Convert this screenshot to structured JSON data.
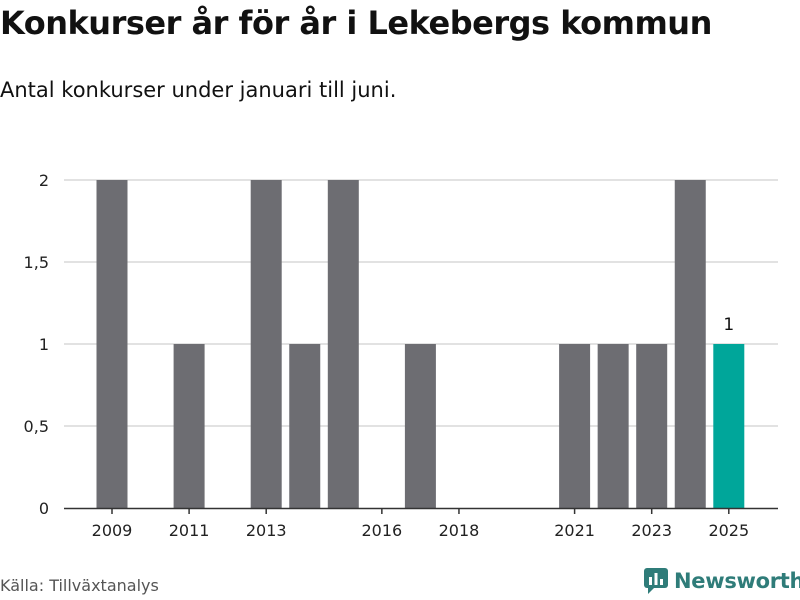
{
  "title": "Konkurser år för år i Lekebergs kommun",
  "subtitle": "Antal konkurser under januari till juni.",
  "source": "Källa: Tillväxtanalys",
  "brand": {
    "name": "Newsworthy",
    "color": "#2f7c79"
  },
  "colors": {
    "bar": "#6d6d72",
    "highlight": "#00a69a",
    "grid": "#d9d9d9"
  },
  "chart_data": {
    "type": "bar",
    "categories": [
      "2009",
      "2010",
      "2011",
      "2012",
      "2013",
      "2014",
      "2015",
      "2016",
      "2017",
      "2018",
      "2019",
      "2020",
      "2021",
      "2022",
      "2023",
      "2024",
      "2025"
    ],
    "values": [
      2,
      0,
      1,
      0,
      2,
      1,
      2,
      0,
      1,
      0,
      0,
      0,
      1,
      1,
      1,
      2,
      1
    ],
    "highlight_category": "2025",
    "x_tick_labels": [
      "2009",
      "2011",
      "2013",
      "2016",
      "2018",
      "2021",
      "2023",
      "2025"
    ],
    "y_ticks": [
      0,
      0.5,
      1,
      1.5,
      2
    ],
    "y_tick_labels": [
      "0",
      "0,5",
      "1",
      "1,5",
      "2"
    ],
    "ylim": [
      0,
      2
    ],
    "data_labels": [
      {
        "category": "2025",
        "text": "1"
      }
    ],
    "grid": true,
    "legend": false,
    "xlabel": "",
    "ylabel": ""
  }
}
